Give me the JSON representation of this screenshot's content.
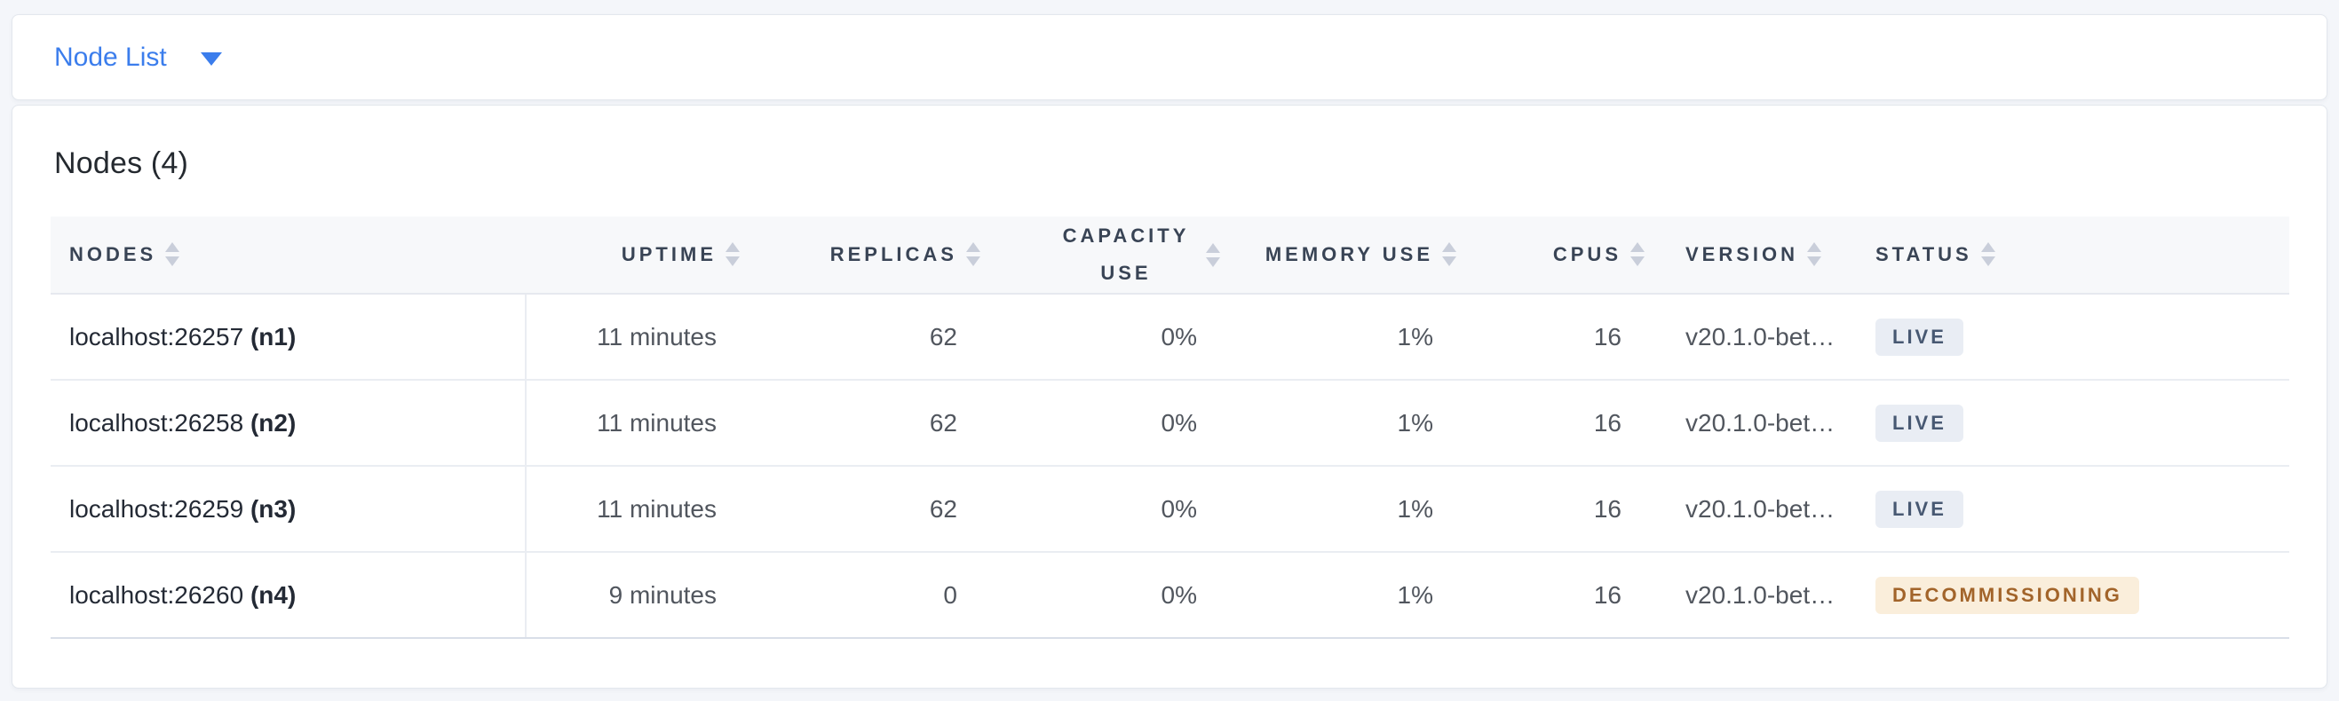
{
  "selector": {
    "label": "Node List",
    "caret_icon": "caret-down-icon"
  },
  "page": {
    "title": "Nodes (4)"
  },
  "table": {
    "columns": [
      {
        "label": "NODES"
      },
      {
        "label": "UPTIME"
      },
      {
        "label": "REPLICAS"
      },
      {
        "label": "CAPACITY USE"
      },
      {
        "label": "MEMORY USE"
      },
      {
        "label": "CPUS"
      },
      {
        "label": "VERSION"
      },
      {
        "label": "STATUS"
      }
    ],
    "rows": [
      {
        "address": "localhost:26257",
        "node_id": "(n1)",
        "uptime": "11 minutes",
        "replicas": "62",
        "capacity_use": "0%",
        "memory_use": "1%",
        "cpus": "16",
        "version": "v20.1.0-bet…",
        "status": "LIVE",
        "status_type": "live"
      },
      {
        "address": "localhost:26258",
        "node_id": "(n2)",
        "uptime": "11 minutes",
        "replicas": "62",
        "capacity_use": "0%",
        "memory_use": "1%",
        "cpus": "16",
        "version": "v20.1.0-bet…",
        "status": "LIVE",
        "status_type": "live"
      },
      {
        "address": "localhost:26259",
        "node_id": "(n3)",
        "uptime": "11 minutes",
        "replicas": "62",
        "capacity_use": "0%",
        "memory_use": "1%",
        "cpus": "16",
        "version": "v20.1.0-bet…",
        "status": "LIVE",
        "status_type": "live"
      },
      {
        "address": "localhost:26260",
        "node_id": "(n4)",
        "uptime": "9 minutes",
        "replicas": "0",
        "capacity_use": "0%",
        "memory_use": "1%",
        "cpus": "16",
        "version": "v20.1.0-bet…",
        "status": "DECOMMISSIONING",
        "status_type": "decommissioning"
      }
    ]
  },
  "colors": {
    "page_bg": "#F4F6FA",
    "card_border": "#E3E7ED",
    "accent_blue": "#3B7DEC",
    "title_color": "#24292F",
    "header_bg": "#F7F8FA",
    "header_text": "#394455",
    "sort_arrow": "#C9CEDA",
    "row_border": "#EAEDF2",
    "table_bottom_border": "#D9DEE8",
    "node_text": "#242A35",
    "value_text": "#51565E",
    "badge_live_bg": "#E9EDF4",
    "badge_live_text": "#475872",
    "badge_decommissioning_bg": "#FAEEDB",
    "badge_decommissioning_text": "#A2642A"
  }
}
